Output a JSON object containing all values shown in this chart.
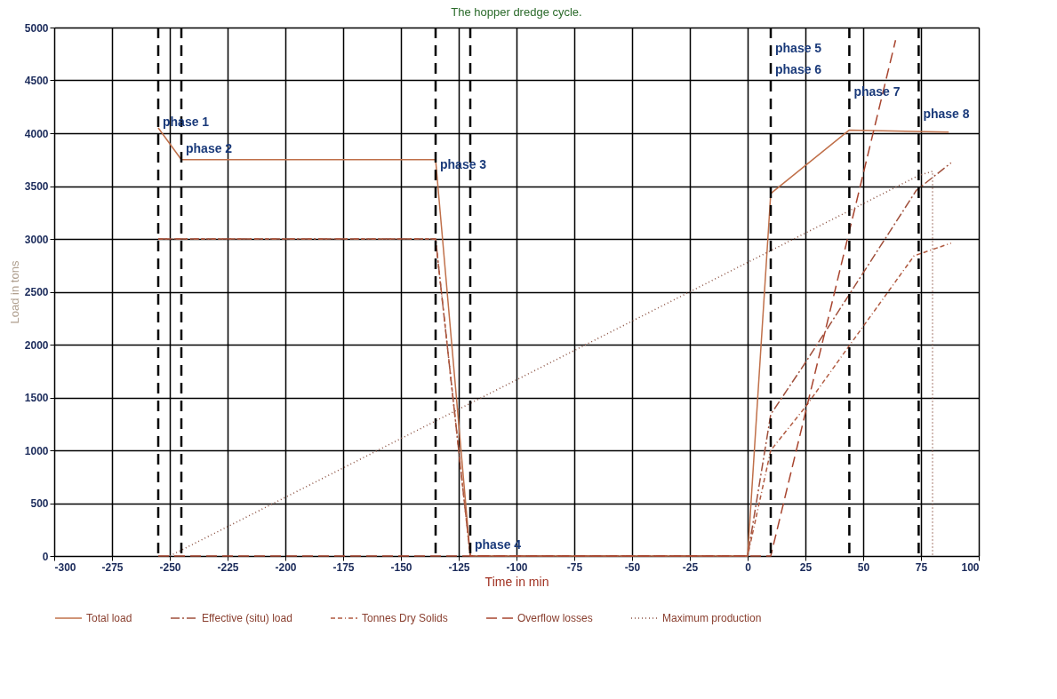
{
  "chart_data": {
    "type": "line",
    "title": "The hopper dredge cycle.",
    "xlabel": "Time in min",
    "ylabel": "Load in tons",
    "xlim": [
      -300,
      100
    ],
    "xticks": [
      -300,
      -275,
      -250,
      -225,
      -200,
      -175,
      -150,
      -125,
      -100,
      -75,
      -50,
      -25,
      0,
      25,
      50,
      75,
      100
    ],
    "ylim": [
      0,
      5000
    ],
    "yticks": [
      0,
      500,
      1000,
      1500,
      2000,
      2500,
      3000,
      3500,
      4000,
      4500,
      5000
    ],
    "grid": true,
    "legend": "bottom",
    "marker": "none",
    "series": [
      {
        "name": "Total load",
        "color": "#c0704a",
        "line_style": "solid",
        "x": [
          -255,
          -245,
          -135,
          -120,
          0,
          10,
          44,
          87
        ],
        "values": [
          4050,
          3750,
          3750,
          0,
          0,
          3430,
          4030,
          4010
        ]
      },
      {
        "name": "Effective (situ) load",
        "color": "#a0503c",
        "line_style": "dashed",
        "x": [
          -255,
          -135,
          -120,
          0,
          10,
          25,
          73,
          88
        ],
        "values": [
          3000,
          3000,
          0,
          0,
          1340,
          1830,
          3460,
          3720
        ]
      },
      {
        "name": "Tonnes Dry Solids",
        "color": "#b05a40",
        "line_style": "dashed",
        "x": [
          -255,
          -135,
          -120,
          0,
          10,
          25,
          43,
          72,
          88
        ],
        "values": [
          3000,
          3000,
          0,
          0,
          1000,
          1410,
          1960,
          2840,
          2960
        ]
      },
      {
        "name": "Overflow losses",
        "color": "#a8452f",
        "line_style": "dashed",
        "x": [
          -255,
          10,
          64
        ],
        "values": [
          0,
          0,
          4880
        ]
      },
      {
        "name": "Maximum production",
        "color": "#8a5040",
        "line_style": "dotted",
        "x": [
          -250,
          74,
          80,
          80
        ],
        "values": [
          0,
          3600,
          3640,
          0
        ]
      }
    ],
    "ref_lines": [
      {
        "axis": "x",
        "value": -255,
        "color": "#000000",
        "line_style": "dashed"
      },
      {
        "axis": "x",
        "value": -245,
        "color": "#000000",
        "line_style": "dashed"
      },
      {
        "axis": "x",
        "value": -135,
        "color": "#000000",
        "line_style": "dashed"
      },
      {
        "axis": "x",
        "value": -120,
        "color": "#000000",
        "line_style": "dashed"
      },
      {
        "axis": "x",
        "value": 10,
        "color": "#000000",
        "line_style": "dashed"
      },
      {
        "axis": "x",
        "value": 44,
        "color": "#000000",
        "line_style": "dashed"
      },
      {
        "axis": "x",
        "value": 74,
        "color": "#000000",
        "line_style": "dashed"
      }
    ],
    "annotations": [
      {
        "text": "phase 1",
        "x": -255,
        "y": 4100
      },
      {
        "text": "phase 2",
        "x": -245,
        "y": 3850
      },
      {
        "text": "phase 3",
        "x": -135,
        "y": 3700
      },
      {
        "text": "phase 4",
        "x": -120,
        "y": 100
      },
      {
        "text": "phase 5",
        "x": 10,
        "y": 4800
      },
      {
        "text": "phase 6",
        "x": 10,
        "y": 4600
      },
      {
        "text": "phase 7",
        "x": 44,
        "y": 4390
      },
      {
        "text": "phase 8",
        "x": 74,
        "y": 4180
      }
    ]
  }
}
